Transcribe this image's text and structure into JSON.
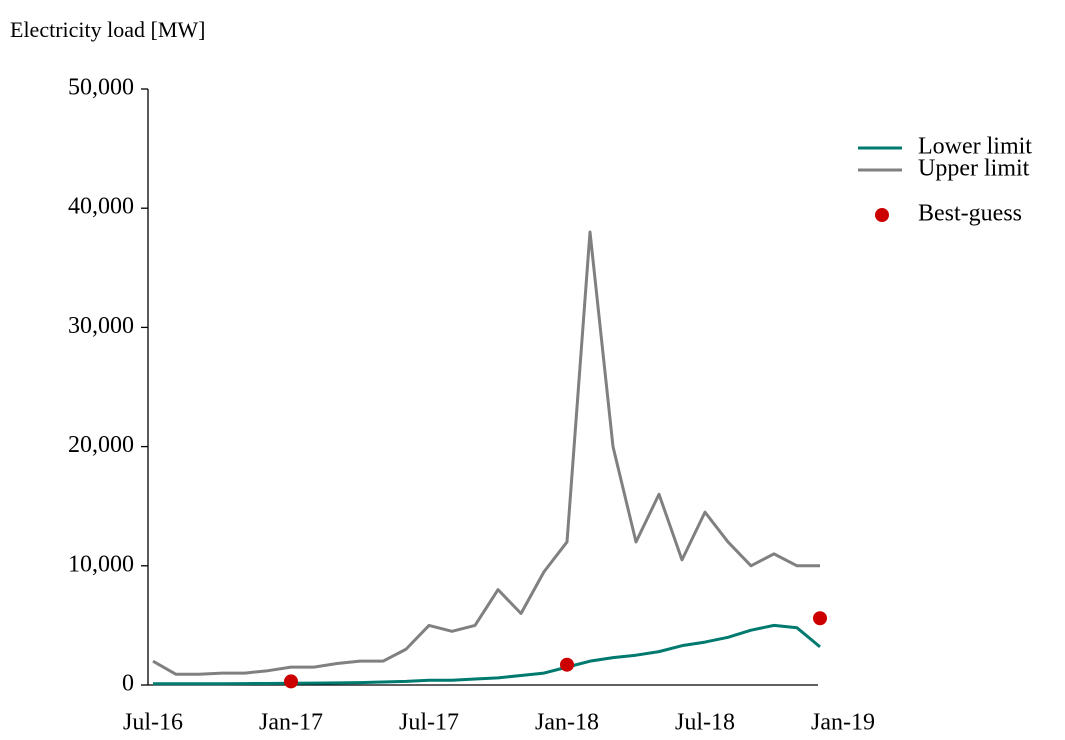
{
  "chart_data": {
    "type": "line",
    "y_label": "Electricity load [MW]",
    "x": [
      "2016-07",
      "2016-08",
      "2016-09",
      "2016-10",
      "2016-11",
      "2016-12",
      "2017-01",
      "2017-02",
      "2017-03",
      "2017-04",
      "2017-05",
      "2017-06",
      "2017-07",
      "2017-08",
      "2017-09",
      "2017-10",
      "2017-11",
      "2017-12",
      "2018-01",
      "2018-02",
      "2018-03",
      "2018-04",
      "2018-05",
      "2018-06",
      "2018-07",
      "2018-08",
      "2018-09",
      "2018-10",
      "2018-11",
      "2018-12"
    ],
    "series": [
      {
        "name": "Lower limit",
        "color": "#007a6e",
        "style": "line",
        "values": [
          100,
          100,
          100,
          100,
          120,
          130,
          150,
          160,
          180,
          200,
          250,
          300,
          400,
          400,
          500,
          600,
          800,
          1000,
          1500,
          2000,
          2300,
          2500,
          2800,
          3300,
          3600,
          4000,
          4600,
          5000,
          4800,
          3200
        ]
      },
      {
        "name": "Upper limit",
        "color": "#808080",
        "style": "line",
        "values": [
          2000,
          900,
          900,
          1000,
          1000,
          1200,
          1500,
          1500,
          1800,
          2000,
          2000,
          3000,
          5000,
          4500,
          5000,
          8000,
          6000,
          9500,
          12000,
          38000,
          20000,
          12000,
          16000,
          10500,
          14500,
          12000,
          10000,
          11000,
          10000,
          10000
        ]
      },
      {
        "name": "Best-guess",
        "color": "#cc0000",
        "style": "markers",
        "x": [
          "2017-01",
          "2018-01",
          "2018-12"
        ],
        "values": [
          300,
          1700,
          5600
        ]
      }
    ],
    "xlim": [
      "2016-07",
      "2019-01"
    ],
    "xticks": [
      {
        "value": "2016-07",
        "label": "Jul-16"
      },
      {
        "value": "2017-01",
        "label": "Jan-17"
      },
      {
        "value": "2017-07",
        "label": "Jul-17"
      },
      {
        "value": "2018-01",
        "label": "Jan-18"
      },
      {
        "value": "2018-07",
        "label": "Jul-18"
      },
      {
        "value": "2019-01",
        "label": "Jan-19"
      }
    ],
    "ylim": [
      0,
      50000
    ],
    "yticks": [
      0,
      {
        "value": 10000,
        "label": "10,000"
      },
      {
        "value": 20000,
        "label": "20,000"
      },
      {
        "value": 30000,
        "label": "30,000"
      },
      {
        "value": 40000,
        "label": "40,000"
      },
      {
        "value": 50000,
        "label": "50,000"
      }
    ],
    "legend": "top-right"
  }
}
